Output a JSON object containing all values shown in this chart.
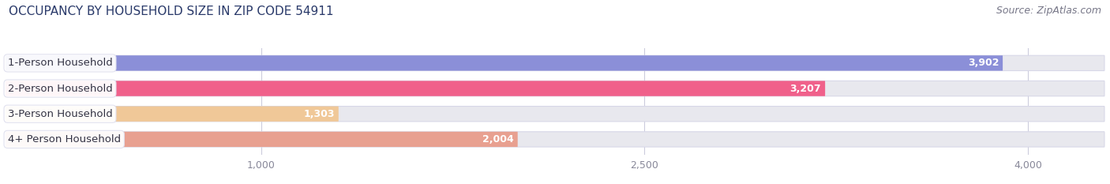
{
  "title": "OCCUPANCY BY HOUSEHOLD SIZE IN ZIP CODE 54911",
  "source": "Source: ZipAtlas.com",
  "categories": [
    "1-Person Household",
    "2-Person Household",
    "3-Person Household",
    "4+ Person Household"
  ],
  "values": [
    3902,
    3207,
    1303,
    2004
  ],
  "bar_colors": [
    "#8b8fd8",
    "#f0608a",
    "#f0c898",
    "#e8a090"
  ],
  "bar_bg_color": "#e8e8ee",
  "xlim": [
    0,
    4300
  ],
  "xticks": [
    1000,
    2500,
    4000
  ],
  "background_color": "#ffffff",
  "label_fontsize": 9.5,
  "value_fontsize": 9,
  "title_fontsize": 11,
  "source_fontsize": 9,
  "title_color": "#2a3a6a",
  "source_color": "#777788",
  "label_text_color": "#333344",
  "value_text_color": "#ffffff",
  "tick_color": "#888899",
  "grid_color": "#ccccdd"
}
